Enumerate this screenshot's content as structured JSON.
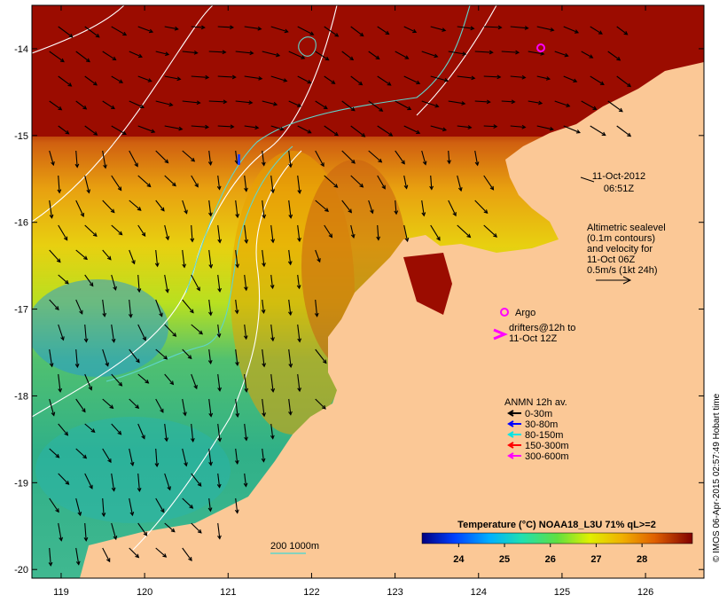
{
  "map": {
    "lat_ticks": [
      "-14",
      "-15",
      "-16",
      "-17",
      "-18",
      "-19",
      "-20"
    ],
    "lon_ticks": [
      "119",
      "120",
      "121",
      "122",
      "123",
      "124",
      "125",
      "126"
    ],
    "lat_range": [
      -20.1,
      -13.5
    ],
    "lon_range": [
      118.65,
      126.7
    ]
  },
  "timestamp": {
    "date": "11-Oct-2012",
    "time": "06:51Z"
  },
  "altimetry_note": {
    "line1": "Altimetric sealevel",
    "line2": "(0.1m contours)",
    "line3": "and velocity for",
    "line4": "11-Oct 06Z",
    "line5": "0.5m/s (1kt 24h)"
  },
  "markers": {
    "argo_label": "Argo",
    "drifters_line1": "drifters@12h to",
    "drifters_line2": "11-Oct 12Z"
  },
  "anmn": {
    "title": "ANMN 12h av.",
    "items": [
      {
        "label": "0-30m",
        "color": "#000000"
      },
      {
        "label": "30-80m",
        "color": "#0000ff"
      },
      {
        "label": "80-150m",
        "color": "#00e5e5"
      },
      {
        "label": "150-300m",
        "color": "#ff0000"
      },
      {
        "label": "300-600m",
        "color": "#ff00ff"
      }
    ]
  },
  "colorbar": {
    "title": "Temperature (°C) NOAA18_L3U 71% qL>=2",
    "ticks": [
      "24",
      "25",
      "26",
      "27",
      "28"
    ],
    "range": [
      23.2,
      29.1
    ]
  },
  "isobath_label": "200  1000m",
  "credit": "© IMOS 06-Apr-2015 02:57:49 Hobart time",
  "colors": {
    "land": "#fbc896",
    "warm": "#9b0c00",
    "isobath": "#5fd5cc",
    "contour": "#ffffff",
    "argo": "#ff00ff",
    "drifter": "#ff00ff"
  }
}
